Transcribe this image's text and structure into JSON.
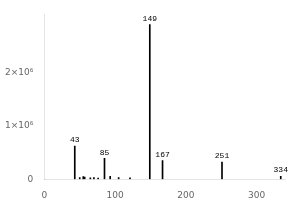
{
  "chart_data": {
    "type": "stem",
    "x": [
      43,
      50,
      55,
      57,
      65,
      70,
      76,
      85,
      93,
      105,
      121,
      149,
      167,
      251,
      334
    ],
    "values": [
      620000,
      30000,
      50000,
      40000,
      25000,
      30000,
      20000,
      390000,
      55000,
      30000,
      28000,
      2900000,
      350000,
      320000,
      55000
    ],
    "color": "black",
    "xlim": [
      0,
      340
    ],
    "ylim": [
      0,
      3100000
    ],
    "xticks": [
      0,
      100,
      200,
      300
    ],
    "yticks": [
      0,
      {
        "value": 1000000,
        "label": "1×10⁶"
      },
      {
        "value": 2000000,
        "label": "2×10⁶"
      }
    ],
    "annotations": [
      {
        "x": 43,
        "y": 620000,
        "text": "43"
      },
      {
        "x": 85,
        "y": 390000,
        "text": "85"
      },
      {
        "x": 149,
        "y": 2900000,
        "text": "149"
      },
      {
        "x": 167,
        "y": 350000,
        "text": "167"
      },
      {
        "x": 251,
        "y": 320000,
        "text": "251"
      },
      {
        "x": 334,
        "y": 55000,
        "text": "334"
      }
    ],
    "grid": false
  }
}
